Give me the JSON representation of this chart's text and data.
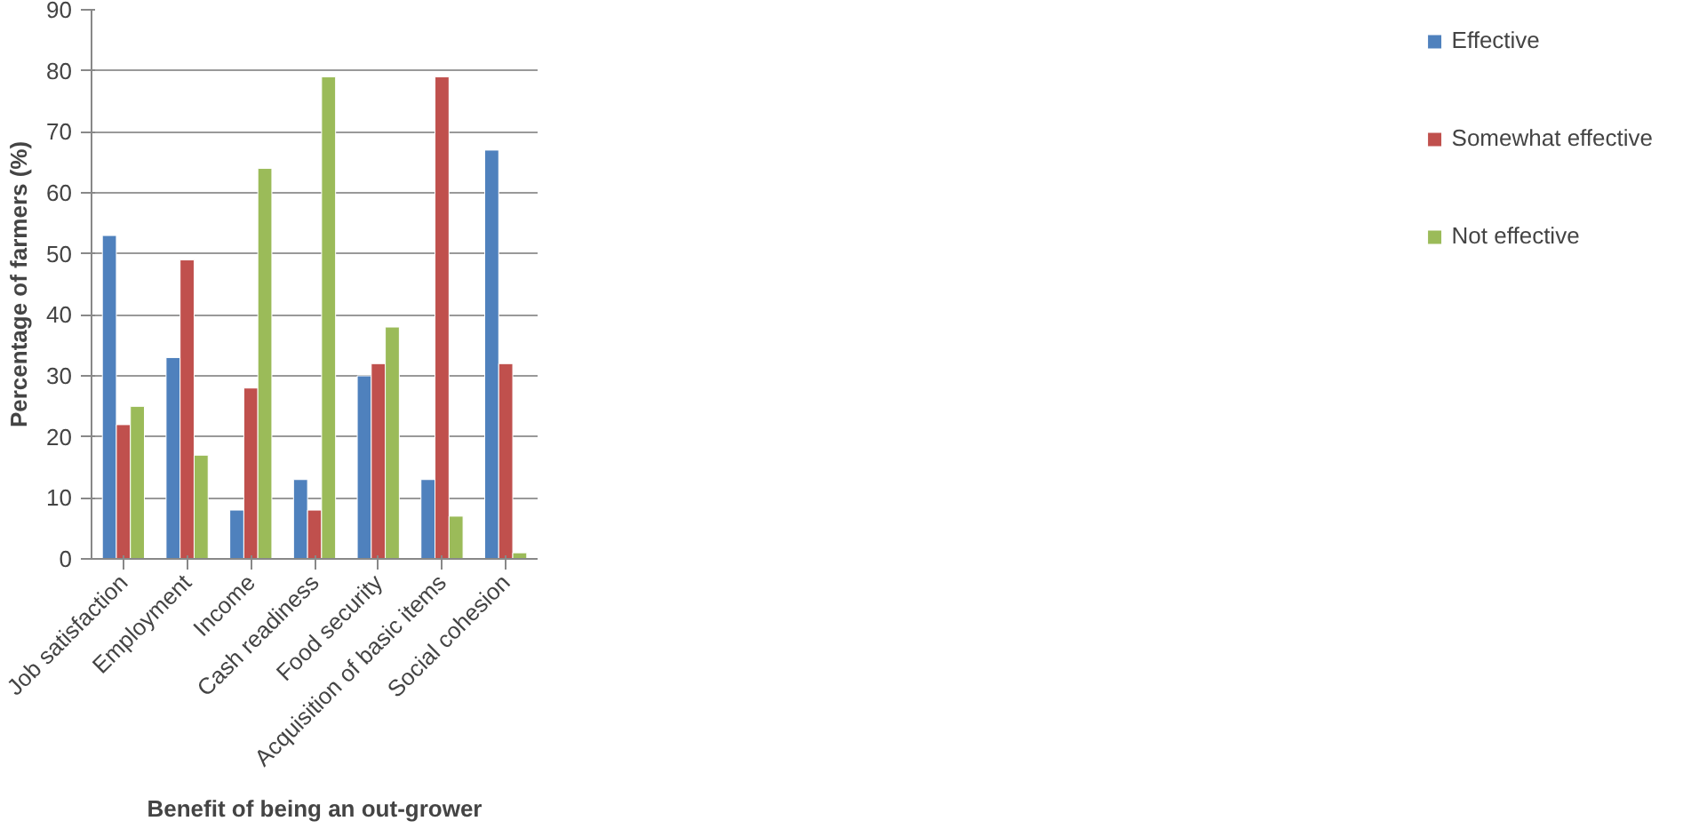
{
  "chart_data": {
    "type": "bar",
    "xlabel": "Benefit of being an out-grower",
    "ylabel": "Percentage of farmers (%)",
    "categories": [
      "Job satisfaction",
      "Employment",
      "Income",
      "Cash readiness",
      "Food security",
      "Acquisition of basic items",
      "Social cohesion"
    ],
    "series": [
      {
        "name": "Effective",
        "color": "#4f81bd",
        "values": [
          53,
          33,
          8,
          13,
          30,
          13,
          67
        ]
      },
      {
        "name": "Somewhat effective",
        "color": "#c0504d",
        "values": [
          22,
          49,
          28,
          8,
          32,
          79,
          32
        ]
      },
      {
        "name": "Not effective",
        "color": "#9bbb59",
        "values": [
          25,
          17,
          64,
          79,
          38,
          7,
          1
        ]
      }
    ],
    "ylim": [
      0,
      90
    ],
    "yticks": [
      0,
      10,
      20,
      30,
      40,
      50,
      60,
      70,
      80,
      90
    ],
    "grid": "y",
    "legend": "right"
  }
}
